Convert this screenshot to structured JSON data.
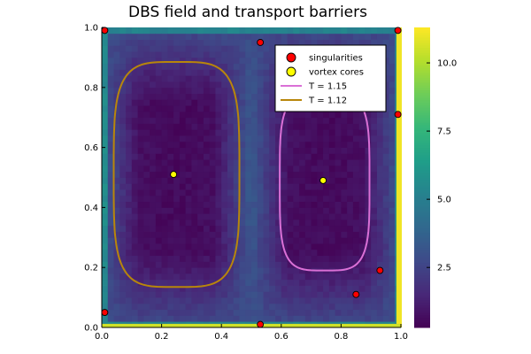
{
  "chart_data": {
    "type": "heatmap",
    "title": "DBS field and transport barriers",
    "xlabel": "",
    "ylabel": "",
    "xlim": [
      0,
      1
    ],
    "ylim": [
      0,
      1
    ],
    "x_ticks": [
      0.0,
      0.2,
      0.4,
      0.6,
      0.8,
      1.0
    ],
    "x_tick_labels": [
      "0.0",
      "0.2",
      "0.4",
      "0.6",
      "0.8",
      "1.0"
    ],
    "y_ticks": [
      0.0,
      0.2,
      0.4,
      0.6,
      0.8,
      1.0
    ],
    "y_tick_labels": [
      "0.0",
      "0.2",
      "0.4",
      "0.6",
      "0.8",
      "1.0"
    ],
    "colorbar": {
      "colormap": "viridis",
      "range": [
        0.3,
        11.3
      ],
      "ticks": [
        2.5,
        5.0,
        7.5,
        10.0
      ],
      "tick_labels": [
        "2.5",
        "5.0",
        "7.5",
        "10.0"
      ]
    },
    "legend_position": "top-right",
    "grid": false,
    "series": [
      {
        "name": "singularities",
        "kind": "scatter",
        "color": "#ff0000",
        "points": [
          [
            0.01,
            0.99
          ],
          [
            0.53,
            0.95
          ],
          [
            0.99,
            0.99
          ],
          [
            0.99,
            0.71
          ],
          [
            0.93,
            0.19
          ],
          [
            0.85,
            0.11
          ],
          [
            0.01,
            0.05
          ],
          [
            0.53,
            0.01
          ]
        ]
      },
      {
        "name": "vortex cores",
        "kind": "scatter",
        "color": "#ffff00",
        "points": [
          [
            0.24,
            0.51
          ],
          [
            0.74,
            0.49
          ]
        ]
      },
      {
        "name": "T = 1.15",
        "kind": "closed-curve",
        "color": "#da70d6",
        "center": [
          0.745,
          0.485
        ],
        "semi_axes": [
          0.15,
          0.295
        ]
      },
      {
        "name": "T = 1.12",
        "kind": "closed-curve",
        "color": "#b8860b",
        "center": [
          0.25,
          0.51
        ],
        "semi_axes": [
          0.21,
          0.375
        ]
      }
    ]
  }
}
